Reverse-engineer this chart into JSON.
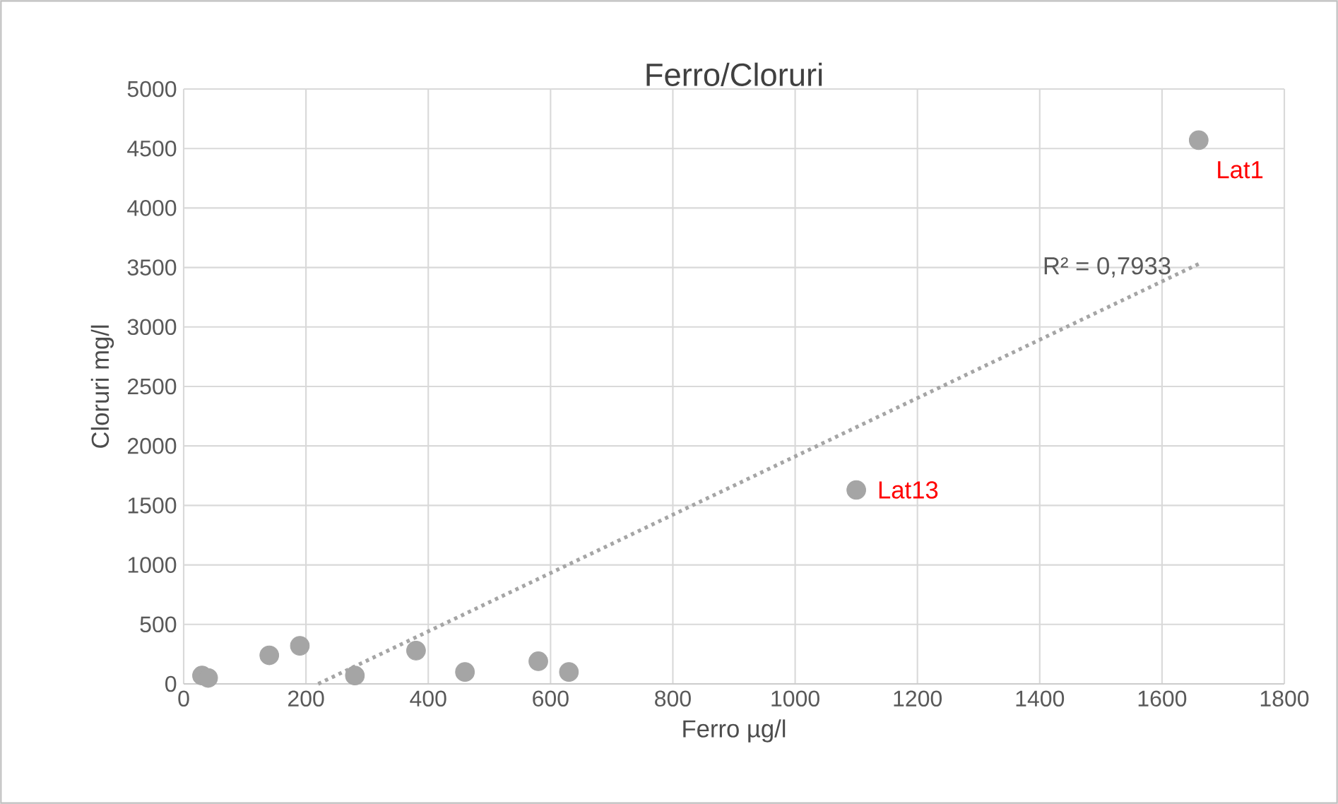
{
  "chart_data": {
    "type": "scatter",
    "title": "Ferro/Cloruri",
    "xlabel": "Ferro µg/l",
    "ylabel": "Cloruri mg/l",
    "series": [
      {
        "color": "#a5a5a5",
        "marker": "circle",
        "x": [
          30,
          40,
          140,
          190,
          280,
          380,
          460,
          580,
          630,
          1100,
          1660
        ],
        "values": [
          70,
          50,
          240,
          320,
          70,
          280,
          100,
          190,
          100,
          1630,
          4570
        ]
      },
      {
        "type": "line",
        "color": "#a5a5a5",
        "line_style": "dotted",
        "marker": "none",
        "x": [
          220,
          1660
        ],
        "values": [
          0,
          3530
        ]
      }
    ],
    "annotations": [
      {
        "text": "Lat1",
        "x": 1660,
        "y": 4570
      },
      {
        "text": "Lat13",
        "x": 1100,
        "y": 1630
      },
      {
        "text": "R² = 0,7933",
        "x": 1510,
        "y": 3160
      }
    ],
    "xlim": [
      0,
      1800
    ],
    "xticks": [
      0,
      200,
      400,
      600,
      800,
      1000,
      1200,
      1400,
      1600,
      1800
    ],
    "ylim": [
      0,
      5000
    ],
    "yticks": [
      0,
      500,
      1000,
      1500,
      2000,
      2500,
      3000,
      3500,
      4000,
      4500,
      5000
    ],
    "grid": true
  }
}
